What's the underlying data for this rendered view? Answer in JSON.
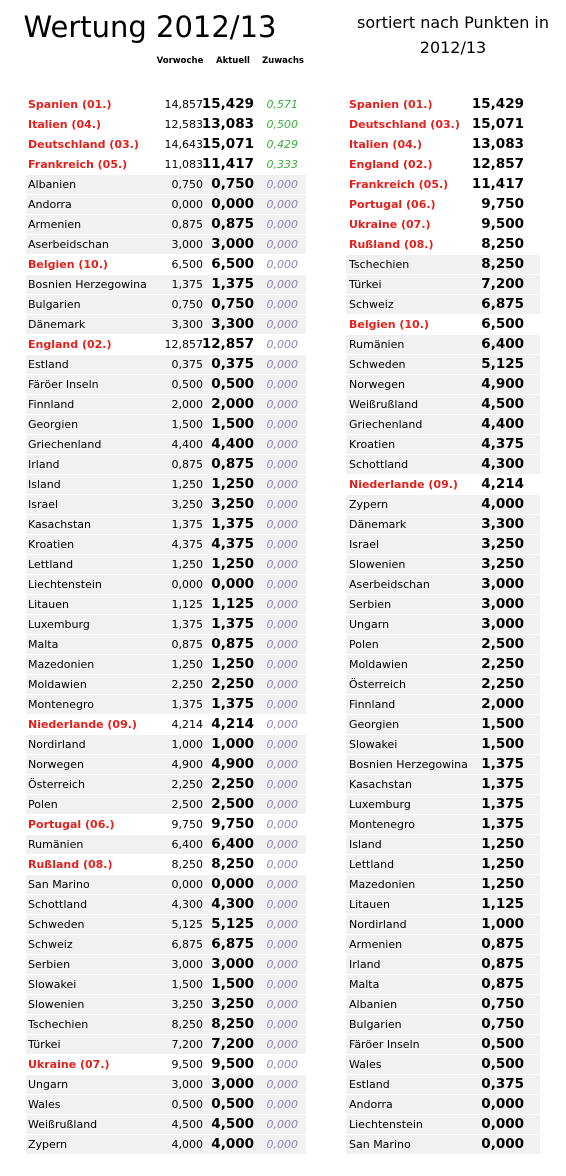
{
  "title": "Wertung 2012/13",
  "subtitle": "sortiert nach Punkten in 2012/13",
  "highlight_color": "#e3211c",
  "zuwachs_color": "#8d80b3",
  "row_color": "#f1f1f1",
  "left": {
    "headers": [
      "Vorwoche",
      "Aktuell",
      "Zuwachs"
    ],
    "rows": [
      {
        "name": "Spanien (01.)",
        "vorwoche": "14,857",
        "aktuell": "15,429",
        "zuwachs": "0,571",
        "red": true,
        "zuwachs_color": "#3aae3a"
      },
      {
        "name": "Italien (04.)",
        "vorwoche": "12,583",
        "aktuell": "13,083",
        "zuwachs": "0,500",
        "red": true,
        "zuwachs_color": "#3aae3a"
      },
      {
        "name": "Deutschland (03.)",
        "vorwoche": "14,643",
        "aktuell": "15,071",
        "zuwachs": "0,429",
        "red": true,
        "zuwachs_color": "#3aae3a"
      },
      {
        "name": "Frankreich (05.)",
        "vorwoche": "11,083",
        "aktuell": "11,417",
        "zuwachs": "0,333",
        "red": true,
        "zuwachs_color": "#3aae3a"
      },
      {
        "name": "Albanien",
        "vorwoche": "0,750",
        "aktuell": "0,750",
        "zuwachs": "0,000"
      },
      {
        "name": "Andorra",
        "vorwoche": "0,000",
        "aktuell": "0,000",
        "zuwachs": "0,000"
      },
      {
        "name": "Armenien",
        "vorwoche": "0,875",
        "aktuell": "0,875",
        "zuwachs": "0,000"
      },
      {
        "name": "Aserbeidschan",
        "vorwoche": "3,000",
        "aktuell": "3,000",
        "zuwachs": "0,000"
      },
      {
        "name": "Belgien (10.)",
        "vorwoche": "6,500",
        "aktuell": "6,500",
        "zuwachs": "0,000",
        "red": true
      },
      {
        "name": "Bosnien Herzegowina",
        "vorwoche": "1,375",
        "aktuell": "1,375",
        "zuwachs": "0,000"
      },
      {
        "name": "Bulgarien",
        "vorwoche": "0,750",
        "aktuell": "0,750",
        "zuwachs": "0,000"
      },
      {
        "name": "Dänemark",
        "vorwoche": "3,300",
        "aktuell": "3,300",
        "zuwachs": "0,000"
      },
      {
        "name": "England (02.)",
        "vorwoche": "12,857",
        "aktuell": "12,857",
        "zuwachs": "0,000",
        "red": true
      },
      {
        "name": "Estland",
        "vorwoche": "0,375",
        "aktuell": "0,375",
        "zuwachs": "0,000"
      },
      {
        "name": "Färöer Inseln",
        "vorwoche": "0,500",
        "aktuell": "0,500",
        "zuwachs": "0,000"
      },
      {
        "name": "Finnland",
        "vorwoche": "2,000",
        "aktuell": "2,000",
        "zuwachs": "0,000"
      },
      {
        "name": "Georgien",
        "vorwoche": "1,500",
        "aktuell": "1,500",
        "zuwachs": "0,000"
      },
      {
        "name": "Griechenland",
        "vorwoche": "4,400",
        "aktuell": "4,400",
        "zuwachs": "0,000"
      },
      {
        "name": "Irland",
        "vorwoche": "0,875",
        "aktuell": "0,875",
        "zuwachs": "0,000"
      },
      {
        "name": "Island",
        "vorwoche": "1,250",
        "aktuell": "1,250",
        "zuwachs": "0,000"
      },
      {
        "name": "Israel",
        "vorwoche": "3,250",
        "aktuell": "3,250",
        "zuwachs": "0,000"
      },
      {
        "name": "Kasachstan",
        "vorwoche": "1,375",
        "aktuell": "1,375",
        "zuwachs": "0,000"
      },
      {
        "name": "Kroatien",
        "vorwoche": "4,375",
        "aktuell": "4,375",
        "zuwachs": "0,000"
      },
      {
        "name": "Lettland",
        "vorwoche": "1,250",
        "aktuell": "1,250",
        "zuwachs": "0,000"
      },
      {
        "name": "Liechtenstein",
        "vorwoche": "0,000",
        "aktuell": "0,000",
        "zuwachs": "0,000"
      },
      {
        "name": "Litauen",
        "vorwoche": "1,125",
        "aktuell": "1,125",
        "zuwachs": "0,000"
      },
      {
        "name": "Luxemburg",
        "vorwoche": "1,375",
        "aktuell": "1,375",
        "zuwachs": "0,000"
      },
      {
        "name": "Malta",
        "vorwoche": "0,875",
        "aktuell": "0,875",
        "zuwachs": "0,000"
      },
      {
        "name": "Mazedonien",
        "vorwoche": "1,250",
        "aktuell": "1,250",
        "zuwachs": "0,000"
      },
      {
        "name": "Moldawien",
        "vorwoche": "2,250",
        "aktuell": "2,250",
        "zuwachs": "0,000"
      },
      {
        "name": "Montenegro",
        "vorwoche": "1,375",
        "aktuell": "1,375",
        "zuwachs": "0,000"
      },
      {
        "name": "Niederlande (09.)",
        "vorwoche": "4,214",
        "aktuell": "4,214",
        "zuwachs": "0,000",
        "red": true
      },
      {
        "name": "Nordirland",
        "vorwoche": "1,000",
        "aktuell": "1,000",
        "zuwachs": "0,000"
      },
      {
        "name": "Norwegen",
        "vorwoche": "4,900",
        "aktuell": "4,900",
        "zuwachs": "0,000"
      },
      {
        "name": "Österreich",
        "vorwoche": "2,250",
        "aktuell": "2,250",
        "zuwachs": "0,000"
      },
      {
        "name": "Polen",
        "vorwoche": "2,500",
        "aktuell": "2,500",
        "zuwachs": "0,000"
      },
      {
        "name": "Portugal (06.)",
        "vorwoche": "9,750",
        "aktuell": "9,750",
        "zuwachs": "0,000",
        "red": true
      },
      {
        "name": "Rumänien",
        "vorwoche": "6,400",
        "aktuell": "6,400",
        "zuwachs": "0,000"
      },
      {
        "name": "Rußland (08.)",
        "vorwoche": "8,250",
        "aktuell": "8,250",
        "zuwachs": "0,000",
        "red": true
      },
      {
        "name": "San Marino",
        "vorwoche": "0,000",
        "aktuell": "0,000",
        "zuwachs": "0,000"
      },
      {
        "name": "Schottland",
        "vorwoche": "4,300",
        "aktuell": "4,300",
        "zuwachs": "0,000"
      },
      {
        "name": "Schweden",
        "vorwoche": "5,125",
        "aktuell": "5,125",
        "zuwachs": "0,000"
      },
      {
        "name": "Schweiz",
        "vorwoche": "6,875",
        "aktuell": "6,875",
        "zuwachs": "0,000"
      },
      {
        "name": "Serbien",
        "vorwoche": "3,000",
        "aktuell": "3,000",
        "zuwachs": "0,000"
      },
      {
        "name": "Slowakei",
        "vorwoche": "1,500",
        "aktuell": "1,500",
        "zuwachs": "0,000"
      },
      {
        "name": "Slowenien",
        "vorwoche": "3,250",
        "aktuell": "3,250",
        "zuwachs": "0,000"
      },
      {
        "name": "Tschechien",
        "vorwoche": "8,250",
        "aktuell": "8,250",
        "zuwachs": "0,000"
      },
      {
        "name": "Türkei",
        "vorwoche": "7,200",
        "aktuell": "7,200",
        "zuwachs": "0,000"
      },
      {
        "name": "Ukraine (07.)",
        "vorwoche": "9,500",
        "aktuell": "9,500",
        "zuwachs": "0,000",
        "red": true
      },
      {
        "name": "Ungarn",
        "vorwoche": "3,000",
        "aktuell": "3,000",
        "zuwachs": "0,000"
      },
      {
        "name": "Wales",
        "vorwoche": "0,500",
        "aktuell": "0,500",
        "zuwachs": "0,000"
      },
      {
        "name": "Weißrußland",
        "vorwoche": "4,500",
        "aktuell": "4,500",
        "zuwachs": "0,000"
      },
      {
        "name": "Zypern",
        "vorwoche": "4,000",
        "aktuell": "4,000",
        "zuwachs": "0,000"
      }
    ]
  },
  "right": {
    "rows": [
      {
        "name": "Spanien (01.)",
        "punkte": "15,429",
        "red": true
      },
      {
        "name": "Deutschland (03.)",
        "punkte": "15,071",
        "red": true
      },
      {
        "name": "Italien (04.)",
        "punkte": "13,083",
        "red": true
      },
      {
        "name": "England (02.)",
        "punkte": "12,857",
        "red": true
      },
      {
        "name": "Frankreich (05.)",
        "punkte": "11,417",
        "red": true
      },
      {
        "name": "Portugal (06.)",
        "punkte": "9,750",
        "red": true
      },
      {
        "name": "Ukraine (07.)",
        "punkte": "9,500",
        "red": true
      },
      {
        "name": "Rußland (08.)",
        "punkte": "8,250",
        "red": true
      },
      {
        "name": "Tschechien",
        "punkte": "8,250"
      },
      {
        "name": "Türkei",
        "punkte": "7,200"
      },
      {
        "name": "Schweiz",
        "punkte": "6,875"
      },
      {
        "name": "Belgien (10.)",
        "punkte": "6,500",
        "red": true
      },
      {
        "name": "Rumänien",
        "punkte": "6,400"
      },
      {
        "name": "Schweden",
        "punkte": "5,125"
      },
      {
        "name": "Norwegen",
        "punkte": "4,900"
      },
      {
        "name": "Weißrußland",
        "punkte": "4,500"
      },
      {
        "name": "Griechenland",
        "punkte": "4,400"
      },
      {
        "name": "Kroatien",
        "punkte": "4,375"
      },
      {
        "name": "Schottland",
        "punkte": "4,300"
      },
      {
        "name": "Niederlande (09.)",
        "punkte": "4,214",
        "red": true
      },
      {
        "name": "Zypern",
        "punkte": "4,000"
      },
      {
        "name": "Dänemark",
        "punkte": "3,300"
      },
      {
        "name": "Israel",
        "punkte": "3,250"
      },
      {
        "name": "Slowenien",
        "punkte": "3,250"
      },
      {
        "name": "Aserbeidschan",
        "punkte": "3,000"
      },
      {
        "name": "Serbien",
        "punkte": "3,000"
      },
      {
        "name": "Ungarn",
        "punkte": "3,000"
      },
      {
        "name": "Polen",
        "punkte": "2,500"
      },
      {
        "name": "Moldawien",
        "punkte": "2,250"
      },
      {
        "name": "Österreich",
        "punkte": "2,250"
      },
      {
        "name": "Finnland",
        "punkte": "2,000"
      },
      {
        "name": "Georgien",
        "punkte": "1,500"
      },
      {
        "name": "Slowakei",
        "punkte": "1,500"
      },
      {
        "name": "Bosnien Herzegowina",
        "punkte": "1,375"
      },
      {
        "name": "Kasachstan",
        "punkte": "1,375"
      },
      {
        "name": "Luxemburg",
        "punkte": "1,375"
      },
      {
        "name": "Montenegro",
        "punkte": "1,375"
      },
      {
        "name": "Island",
        "punkte": "1,250"
      },
      {
        "name": "Lettland",
        "punkte": "1,250"
      },
      {
        "name": "Mazedonien",
        "punkte": "1,250"
      },
      {
        "name": "Litauen",
        "punkte": "1,125"
      },
      {
        "name": "Nordirland",
        "punkte": "1,000"
      },
      {
        "name": "Armenien",
        "punkte": "0,875"
      },
      {
        "name": "Irland",
        "punkte": "0,875"
      },
      {
        "name": "Malta",
        "punkte": "0,875"
      },
      {
        "name": "Albanien",
        "punkte": "0,750"
      },
      {
        "name": "Bulgarien",
        "punkte": "0,750"
      },
      {
        "name": "Färöer Inseln",
        "punkte": "0,500"
      },
      {
        "name": "Wales",
        "punkte": "0,500"
      },
      {
        "name": "Estland",
        "punkte": "0,375"
      },
      {
        "name": "Andorra",
        "punkte": "0,000"
      },
      {
        "name": "Liechtenstein",
        "punkte": "0,000"
      },
      {
        "name": "San Marino",
        "punkte": "0,000"
      }
    ]
  }
}
